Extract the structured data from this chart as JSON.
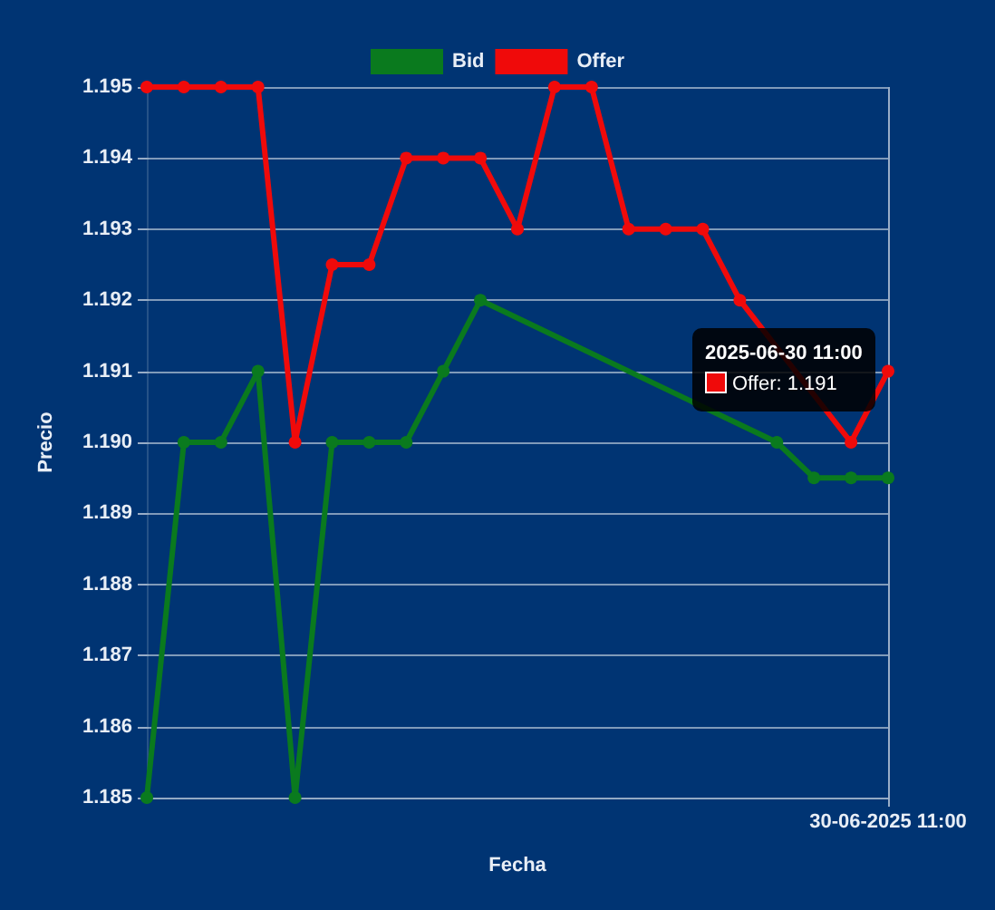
{
  "chart_data": {
    "type": "line",
    "xlabel": "Fecha",
    "ylabel": "Precio",
    "categories": [
      null,
      null,
      null,
      null,
      null,
      null,
      null,
      null,
      null,
      null,
      null,
      null,
      null,
      null,
      null,
      null,
      null,
      null,
      null,
      null,
      "30-06-2025 11:00"
    ],
    "ylim": [
      1.185,
      1.195
    ],
    "yticks": [
      1.185,
      1.186,
      1.187,
      1.188,
      1.189,
      {
        "value": 1.19,
        "label": "1.190"
      },
      1.191,
      1.192,
      1.193,
      1.194,
      1.195
    ],
    "grid": true,
    "legend": "top",
    "marker": "circle",
    "line_style": "solid",
    "annotations": [
      {
        "text": "2025-06-30 11:00\nOffer: 1.191",
        "x": "30-06-2025 11:00",
        "y": 1.191
      }
    ],
    "series": [
      {
        "name": "Bid",
        "color": "#0a7a1e",
        "values": [
          1.185,
          1.19,
          1.19,
          1.191,
          1.185,
          1.19,
          1.19,
          1.19,
          1.191,
          1.192,
          null,
          null,
          null,
          null,
          null,
          null,
          null,
          1.19,
          1.1895,
          1.1895,
          1.1895
        ]
      },
      {
        "name": "Offer",
        "color": "#f00a0a",
        "values": [
          1.195,
          1.195,
          1.195,
          1.195,
          1.19,
          1.1925,
          1.1925,
          1.194,
          1.194,
          1.194,
          1.193,
          1.195,
          1.195,
          1.193,
          1.193,
          1.193,
          1.192,
          null,
          null,
          1.19,
          1.191
        ]
      }
    ]
  }
}
